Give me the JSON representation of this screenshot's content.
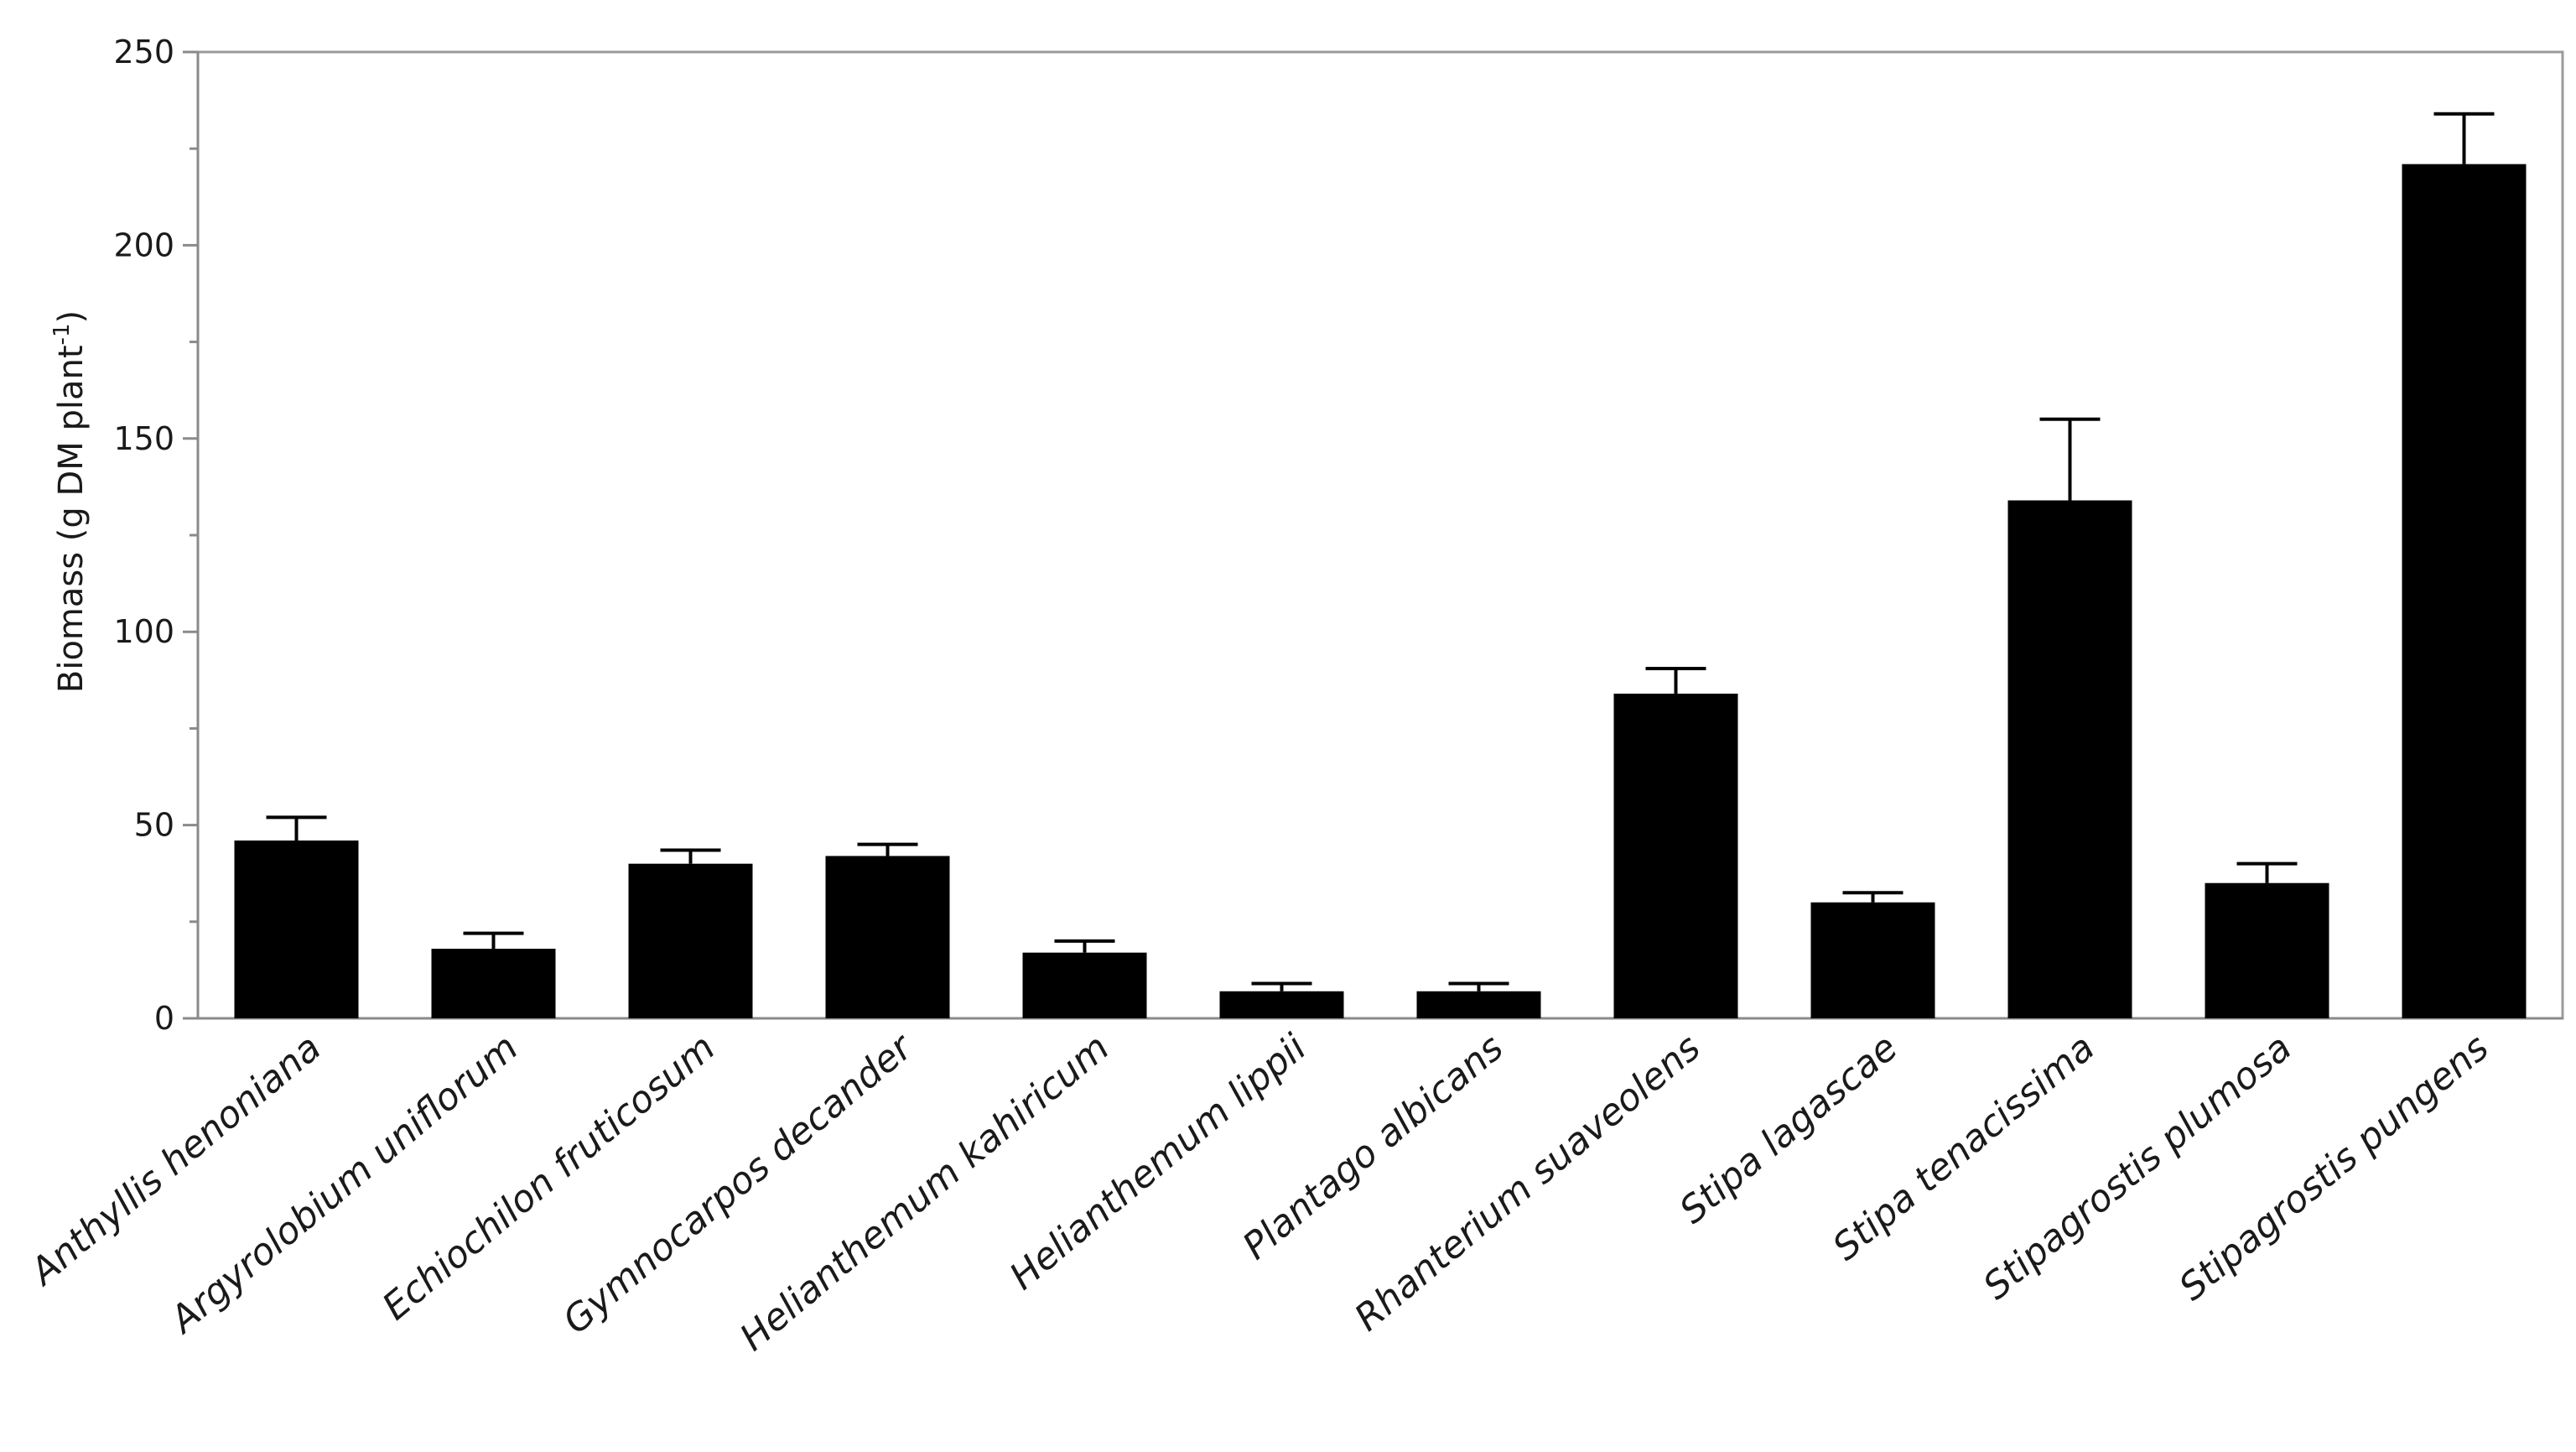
{
  "chart_data": {
    "type": "bar",
    "categories": [
      "Anthyllis  henoniana",
      "Argyrolobium uniflorum",
      "Echiochilon fruticosum",
      "Gymnocarpos decander",
      "Helianthemum kahiricum",
      "Helianthemum lippii",
      "Plantago albicans",
      "Rhanterium suaveolens",
      "Stipa lagascae",
      "Stipa tenacissima",
      "Stipagrostis plumosa",
      "Stipagrostis pungens"
    ],
    "values": [
      46,
      18,
      40,
      42,
      17,
      7,
      7,
      84,
      30,
      134,
      35,
      221
    ],
    "error": [
      6,
      4,
      3.5,
      3,
      3,
      2,
      2,
      6.5,
      2.5,
      21,
      5,
      13
    ],
    "ylabel": "Biomass (g DM plant",
    "ylabel_superscript": "-1",
    "ylabel_suffix": ")",
    "ylim": [
      0,
      250
    ],
    "yticks": [
      0,
      50,
      100,
      150,
      200,
      250
    ],
    "bar_color": "#000000",
    "grid": false
  }
}
